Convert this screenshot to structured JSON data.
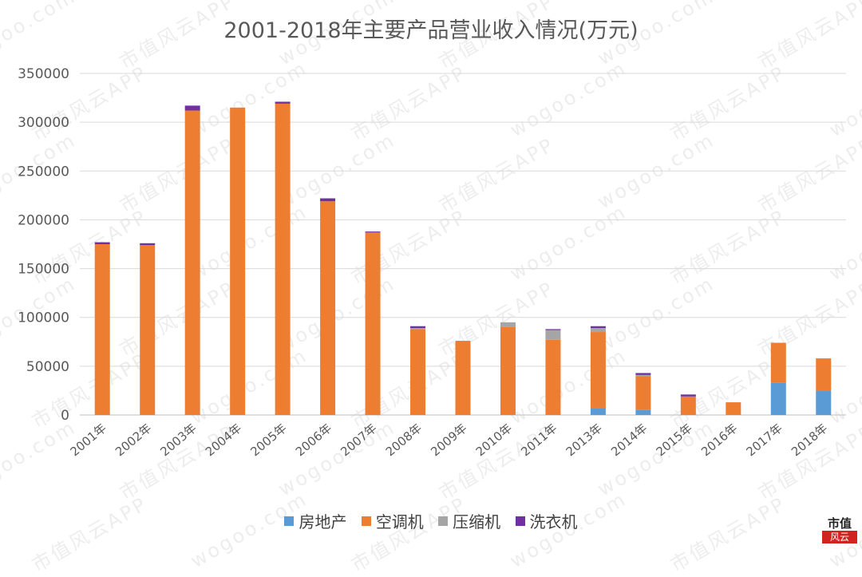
{
  "chart_data": {
    "type": "bar",
    "stacked": true,
    "title": "2001-2018年主要产品营业收入情况(万元)",
    "categories": [
      "2001年",
      "2002年",
      "2003年",
      "2004年",
      "2005年",
      "2006年",
      "2007年",
      "2008年",
      "2009年",
      "2010年",
      "2011年",
      "2013年",
      "2014年",
      "2015年",
      "2016年",
      "2017年",
      "2018年"
    ],
    "series": [
      {
        "name": "房地产",
        "color": "#5b9bd5",
        "values": [
          0,
          0,
          0,
          0,
          0,
          0,
          0,
          0,
          0,
          0,
          0,
          7000,
          5000,
          0,
          0,
          33000,
          25000
        ]
      },
      {
        "name": "空调机",
        "color": "#ed7d31",
        "values": [
          175000,
          174000,
          312000,
          315000,
          319000,
          219000,
          187000,
          88000,
          76000,
          90000,
          77000,
          78000,
          35000,
          19000,
          13000,
          41000,
          33000
        ]
      },
      {
        "name": "压缩机",
        "color": "#a5a5a5",
        "values": [
          0,
          0,
          0,
          0,
          0,
          0,
          0,
          1000,
          0,
          5000,
          10000,
          4000,
          1000,
          0,
          0,
          0,
          0
        ]
      },
      {
        "name": "洗衣机",
        "color": "#7030a0",
        "values": [
          2000,
          2000,
          5000,
          0,
          2000,
          3000,
          1000,
          2000,
          0,
          0,
          1000,
          2000,
          2000,
          2000,
          0,
          0,
          0
        ]
      }
    ],
    "ylim": [
      0,
      350000
    ],
    "yticks": [
      "0",
      "50000",
      "100000",
      "150000",
      "200000",
      "250000",
      "300000",
      "350000"
    ],
    "xlabel": "",
    "ylabel": "",
    "grid": true,
    "legend": "bottom"
  },
  "watermark": {
    "site": "wogoo.com",
    "app": "市值风云APP"
  },
  "logo": {
    "line1": "市值",
    "line2": "风云"
  }
}
